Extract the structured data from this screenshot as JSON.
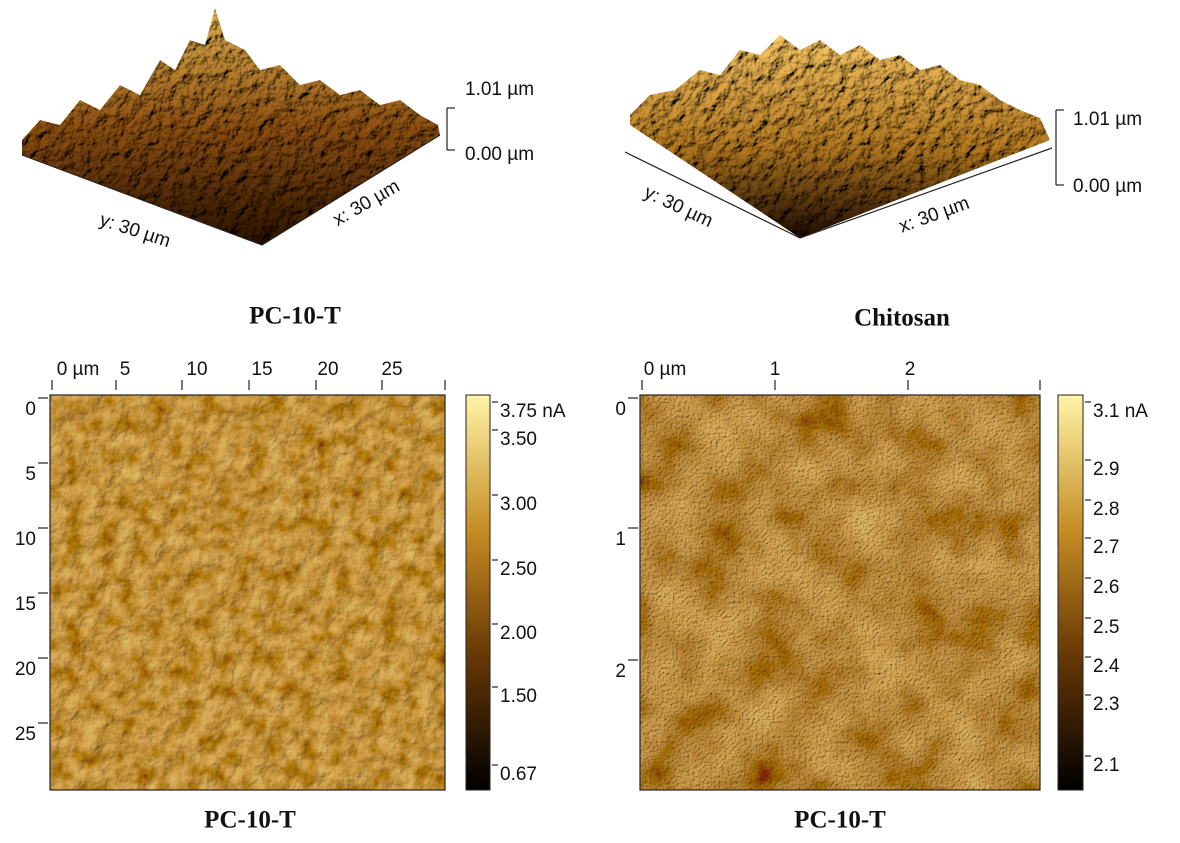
{
  "panels": [
    {
      "caption": "PC-10-T",
      "z_top": "1.01 µm",
      "z_bottom": "0.00 µm",
      "y_axis": "y: 30 µm",
      "x_axis": "x: 30 µm"
    },
    {
      "caption": "Chitosan",
      "z_top": "1.01 µm",
      "z_bottom": "0.00 µm",
      "y_axis": "y: 30 µm",
      "x_axis": "x: 30 µm"
    },
    {
      "caption": "PC-10-T",
      "top_ticks": [
        "0 µm",
        "5",
        "10",
        "15",
        "20",
        "25"
      ],
      "left_ticks": [
        "0",
        "5",
        "10",
        "15",
        "20",
        "25"
      ],
      "colorbar": [
        "3.75 nA",
        "3.50",
        "3.00",
        "2.50",
        "2.00",
        "1.50",
        "0.67"
      ]
    },
    {
      "caption": "PC-10-T",
      "top_ticks": [
        "0 µm",
        "1",
        "2"
      ],
      "left_ticks": [
        "0",
        "1",
        "2"
      ],
      "colorbar": [
        "3.1 nA",
        "2.9",
        "2.8",
        "2.7",
        "2.6",
        "2.5",
        "2.4",
        "2.3",
        "2.1"
      ]
    }
  ]
}
